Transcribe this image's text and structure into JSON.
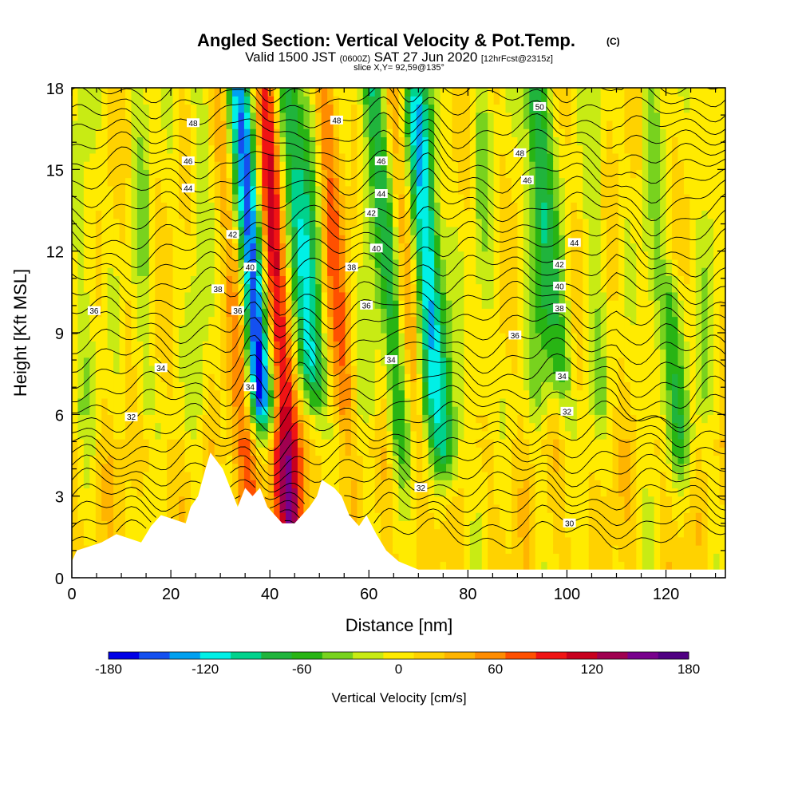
{
  "title": "Angled Section: Vertical Velocity & Pot.Temp.",
  "title_mark": "(C)",
  "subtitle_main": "Valid 1500 JST",
  "subtitle_z": "(0600Z)",
  "subtitle_date": "SAT 27 Jun 2020",
  "subtitle_fcst": "[12hrFcst@2315z]",
  "slice_label": "slice X,Y= 92,59@135°",
  "chart_data": {
    "type": "heatmap",
    "title": "Angled Section: Vertical Velocity & Pot.Temp.",
    "xlabel": "Distance [nm]",
    "ylabel": "Height [Kft MSL]",
    "xlim": [
      0,
      132
    ],
    "ylim": [
      0,
      18
    ],
    "x_ticks": [
      "0",
      "20",
      "40",
      "60",
      "80",
      "100",
      "120"
    ],
    "y_ticks": [
      "0",
      "3",
      "6",
      "9",
      "12",
      "15",
      "18"
    ],
    "colorbar": {
      "label": "Vertical Velocity [cm/s]",
      "ticks": [
        "-180",
        "-120",
        "-60",
        "0",
        "60",
        "120",
        "180"
      ],
      "range": [
        -180,
        180
      ],
      "colors": [
        "#0000e6",
        "#1450f0",
        "#00a0f0",
        "#00f0e6",
        "#00d28c",
        "#20b43c",
        "#28b414",
        "#78d21e",
        "#c8eb14",
        "#ffeb00",
        "#ffd200",
        "#ffb400",
        "#ff8c00",
        "#ff5000",
        "#f01414",
        "#c8001e",
        "#a00050",
        "#78008c",
        "#500082"
      ]
    },
    "vertical_velocity_features": [
      {
        "type": "updraft",
        "x": 33,
        "y_min": 3,
        "y_max": 18,
        "peak": 70
      },
      {
        "type": "downdraft",
        "x": 36,
        "y_min": 7,
        "y_max": 18,
        "peak": -160
      },
      {
        "type": "updraft",
        "x": 41,
        "y_min": 2,
        "y_max": 18,
        "peak": 125
      },
      {
        "type": "downdraft",
        "x": 46,
        "y_min": 8,
        "y_max": 18,
        "peak": -115
      },
      {
        "type": "updraft",
        "x": 53,
        "y_min": 7,
        "y_max": 18,
        "peak": 55
      },
      {
        "type": "downdraft",
        "x": 64,
        "y_min": 5,
        "y_max": 18,
        "peak": -75
      },
      {
        "type": "updraft",
        "x": 67,
        "y_min": 5,
        "y_max": 18,
        "peak": 45
      },
      {
        "type": "downdraft",
        "x": 72,
        "y_min": 5,
        "y_max": 17,
        "peak": -110
      },
      {
        "type": "downdraft",
        "x": 96,
        "y_min": 8,
        "y_max": 18,
        "peak": -75
      },
      {
        "type": "downdraft",
        "x": 120,
        "y_min": 5,
        "y_max": 10,
        "peak": -60
      }
    ],
    "theta_contours": {
      "interval": 1,
      "labels": [
        {
          "value": "30",
          "x": 100.5,
          "y": 2.0
        },
        {
          "value": "32",
          "x": 12,
          "y": 5.9
        },
        {
          "value": "32",
          "x": 70.5,
          "y": 3.3
        },
        {
          "value": "32",
          "x": 100,
          "y": 6.1
        },
        {
          "value": "34",
          "x": 18,
          "y": 7.7
        },
        {
          "value": "34",
          "x": 36,
          "y": 7.0
        },
        {
          "value": "34",
          "x": 64.5,
          "y": 8.0
        },
        {
          "value": "34",
          "x": 99,
          "y": 7.4
        },
        {
          "value": "36",
          "x": 4.5,
          "y": 9.8
        },
        {
          "value": "36",
          "x": 33.5,
          "y": 9.8
        },
        {
          "value": "36",
          "x": 59.5,
          "y": 10.0
        },
        {
          "value": "36",
          "x": 89.5,
          "y": 8.9
        },
        {
          "value": "38",
          "x": 29.5,
          "y": 10.6
        },
        {
          "value": "38",
          "x": 56.5,
          "y": 11.4
        },
        {
          "value": "38",
          "x": 98.5,
          "y": 9.9
        },
        {
          "value": "40",
          "x": 36,
          "y": 11.4
        },
        {
          "value": "40",
          "x": 61.5,
          "y": 12.1
        },
        {
          "value": "40",
          "x": 98.5,
          "y": 10.7
        },
        {
          "value": "42",
          "x": 32.5,
          "y": 12.6
        },
        {
          "value": "42",
          "x": 60.5,
          "y": 13.4
        },
        {
          "value": "42",
          "x": 98.5,
          "y": 11.5
        },
        {
          "value": "44",
          "x": 23.5,
          "y": 14.3
        },
        {
          "value": "44",
          "x": 62.5,
          "y": 14.1
        },
        {
          "value": "44",
          "x": 101.5,
          "y": 12.3
        },
        {
          "value": "46",
          "x": 23.5,
          "y": 15.3
        },
        {
          "value": "46",
          "x": 62.5,
          "y": 15.3
        },
        {
          "value": "46",
          "x": 92,
          "y": 14.6
        },
        {
          "value": "48",
          "x": 24.5,
          "y": 16.7
        },
        {
          "value": "48",
          "x": 53.5,
          "y": 16.8
        },
        {
          "value": "48",
          "x": 90.5,
          "y": 15.6
        },
        {
          "value": "50",
          "x": 94.5,
          "y": 17.3
        }
      ]
    },
    "terrain": [
      {
        "x": 0,
        "height": 0.6
      },
      {
        "x": 1,
        "height": 1.0
      },
      {
        "x": 6,
        "height": 1.3
      },
      {
        "x": 9,
        "height": 1.6
      },
      {
        "x": 14,
        "height": 1.3
      },
      {
        "x": 16,
        "height": 1.9
      },
      {
        "x": 18,
        "height": 2.3
      },
      {
        "x": 23,
        "height": 2.0
      },
      {
        "x": 24,
        "height": 2.6
      },
      {
        "x": 25.5,
        "height": 3.0
      },
      {
        "x": 27,
        "height": 4.0
      },
      {
        "x": 28,
        "height": 4.6
      },
      {
        "x": 30.5,
        "height": 4.0
      },
      {
        "x": 32,
        "height": 3.3
      },
      {
        "x": 33.5,
        "height": 2.6
      },
      {
        "x": 35,
        "height": 3.3
      },
      {
        "x": 36.5,
        "height": 3.0
      },
      {
        "x": 38,
        "height": 3.3
      },
      {
        "x": 39.5,
        "height": 2.6
      },
      {
        "x": 41,
        "height": 2.3
      },
      {
        "x": 42.5,
        "height": 2.0
      },
      {
        "x": 45,
        "height": 2.0
      },
      {
        "x": 46.5,
        "height": 2.3
      },
      {
        "x": 48,
        "height": 2.6
      },
      {
        "x": 49.5,
        "height": 3.0
      },
      {
        "x": 50.5,
        "height": 3.6
      },
      {
        "x": 53,
        "height": 3.3
      },
      {
        "x": 54.5,
        "height": 3.0
      },
      {
        "x": 56,
        "height": 2.3
      },
      {
        "x": 58,
        "height": 1.9
      },
      {
        "x": 59.5,
        "height": 2.3
      },
      {
        "x": 61.5,
        "height": 1.6
      },
      {
        "x": 63.5,
        "height": 1.0
      },
      {
        "x": 66,
        "height": 0.6
      },
      {
        "x": 70,
        "height": 0.3
      },
      {
        "x": 132,
        "height": 0.3
      }
    ]
  }
}
